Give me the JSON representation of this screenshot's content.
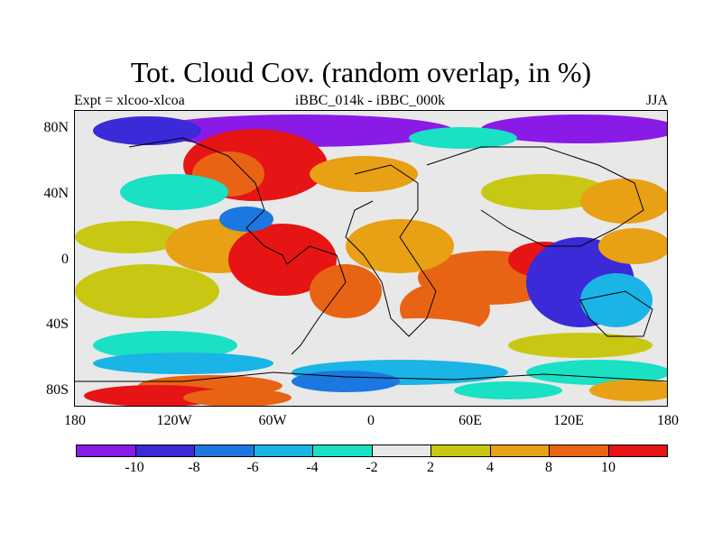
{
  "title": "Tot. Cloud Cov. (random overlap, in %)",
  "left_label": "Expt = xlcoo-xlcoa",
  "center_label": "iBBC_014k - iBBC_000k",
  "right_label": "JJA",
  "lat_ticks": [
    "80N",
    "40N",
    "0",
    "40S",
    "80S"
  ],
  "lon_ticks": [
    "180",
    "120W",
    "60W",
    "0",
    "60E",
    "120E",
    "180"
  ],
  "colorbar": {
    "labels": [
      "-10",
      "-8",
      "-6",
      "-4",
      "-2",
      "2",
      "4",
      "8",
      "10"
    ],
    "colors": [
      "#8a1ae6",
      "#3a2ad8",
      "#1a78e0",
      "#1ab4e6",
      "#1ae0c4",
      "#e8e8e8",
      "#c8c814",
      "#e8a014",
      "#e86414",
      "#e61414"
    ]
  },
  "map_colors": {
    "neutral": "#e8e8e8",
    "coast": "#000000"
  }
}
